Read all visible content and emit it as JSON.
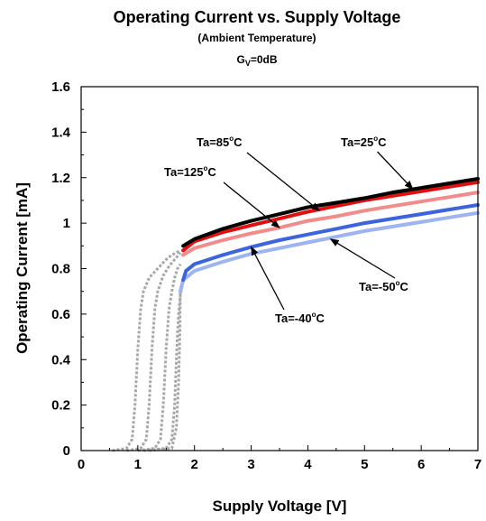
{
  "chart_data": {
    "type": "line",
    "title": "Operating Current vs. Supply Voltage",
    "subtitle": "(Ambient Temperature)",
    "condition": {
      "prefix": "G",
      "sub": "V",
      "suffix": "=0dB"
    },
    "xlabel": "Supply Voltage [V]",
    "ylabel": "Operating Current [mA]",
    "xlim": [
      0,
      7
    ],
    "ylim": [
      0,
      1.6
    ],
    "x_ticks": [
      "0",
      "1",
      "2",
      "3",
      "4",
      "5",
      "6",
      "7"
    ],
    "y_ticks": [
      "0",
      "0.2",
      "0.4",
      "0.6",
      "0.8",
      "1",
      "1.2",
      "1.4",
      "1.6"
    ],
    "grid": false,
    "legend": "none",
    "colors": {
      "25C": "#000000",
      "85C": "#e01010",
      "125C": "#f08c8c",
      "-40C": "#3c64dc",
      "-50C": "#9db4f0",
      "transition": "#a8a8a8"
    },
    "series": [
      {
        "key": "25C",
        "x": [
          1.8,
          2.0,
          2.5,
          3.0,
          3.5,
          4.0,
          4.5,
          5.0,
          5.5,
          6.0,
          6.5,
          7.0
        ],
        "y": [
          0.9,
          0.93,
          0.975,
          1.01,
          1.04,
          1.07,
          1.09,
          1.11,
          1.135,
          1.155,
          1.175,
          1.195
        ]
      },
      {
        "key": "85C",
        "x": [
          1.8,
          2.0,
          2.5,
          3.0,
          3.5,
          4.0,
          4.5,
          5.0,
          5.5,
          6.0,
          6.5,
          7.0
        ],
        "y": [
          0.88,
          0.92,
          0.96,
          0.99,
          1.02,
          1.05,
          1.075,
          1.1,
          1.12,
          1.14,
          1.16,
          1.18
        ]
      },
      {
        "key": "125C",
        "x": [
          1.8,
          2.0,
          2.5,
          3.0,
          3.5,
          4.0,
          4.5,
          5.0,
          5.5,
          6.0,
          6.5,
          7.0
        ],
        "y": [
          0.86,
          0.89,
          0.925,
          0.955,
          0.98,
          1.01,
          1.03,
          1.055,
          1.075,
          1.095,
          1.115,
          1.135
        ]
      },
      {
        "key": "-40C",
        "x": [
          1.8,
          1.85,
          2.0,
          2.5,
          3.0,
          3.5,
          4.0,
          4.5,
          5.0,
          5.5,
          6.0,
          6.5,
          7.0
        ],
        "y": [
          0.75,
          0.79,
          0.82,
          0.86,
          0.895,
          0.925,
          0.95,
          0.975,
          1.0,
          1.02,
          1.04,
          1.06,
          1.08
        ]
      },
      {
        "key": "-50C",
        "x": [
          1.75,
          1.8,
          2.0,
          2.5,
          3.0,
          3.5,
          4.0,
          4.5,
          5.0,
          5.5,
          6.0,
          6.5,
          7.0
        ],
        "y": [
          0.7,
          0.75,
          0.79,
          0.83,
          0.865,
          0.89,
          0.915,
          0.94,
          0.965,
          0.985,
          1.005,
          1.025,
          1.045
        ]
      }
    ],
    "transition_curves": [
      {
        "x": [
          0.55,
          0.8,
          0.9,
          0.95,
          1.0,
          1.05,
          1.1,
          1.2,
          1.35,
          1.5,
          1.6,
          1.75
        ],
        "y": [
          0.0,
          0.01,
          0.05,
          0.2,
          0.45,
          0.62,
          0.7,
          0.76,
          0.8,
          0.84,
          0.86,
          0.88
        ]
      },
      {
        "x": [
          0.8,
          1.05,
          1.15,
          1.2,
          1.25,
          1.3,
          1.35,
          1.45,
          1.55,
          1.65,
          1.75
        ],
        "y": [
          0.0,
          0.01,
          0.05,
          0.2,
          0.45,
          0.62,
          0.7,
          0.77,
          0.81,
          0.84,
          0.87
        ]
      },
      {
        "x": [
          1.0,
          1.3,
          1.4,
          1.45,
          1.5,
          1.55,
          1.6,
          1.65,
          1.7,
          1.75
        ],
        "y": [
          0.0,
          0.01,
          0.05,
          0.2,
          0.45,
          0.62,
          0.7,
          0.76,
          0.8,
          0.82
        ]
      },
      {
        "x": [
          1.1,
          1.5,
          1.6,
          1.65,
          1.68,
          1.7,
          1.72,
          1.75,
          1.78,
          1.8
        ],
        "y": [
          0.0,
          0.01,
          0.05,
          0.2,
          0.4,
          0.52,
          0.6,
          0.68,
          0.72,
          0.75
        ]
      },
      {
        "x": [
          1.2,
          1.6,
          1.68,
          1.72,
          1.74,
          1.75
        ],
        "y": [
          0.0,
          0.01,
          0.1,
          0.3,
          0.5,
          0.7
        ]
      }
    ],
    "annotations": [
      {
        "key": "25C",
        "label": "Ta=25",
        "unit": "C",
        "point": [
          5.85,
          1.15
        ]
      },
      {
        "key": "85C",
        "label": "Ta=85",
        "unit": "C",
        "point": [
          4.2,
          1.055
        ]
      },
      {
        "key": "125C",
        "label": "Ta=125",
        "unit": "C",
        "point": [
          3.5,
          0.98
        ]
      },
      {
        "key": "-50C",
        "label": "Ta=-50",
        "unit": "C",
        "point": [
          4.4,
          0.93
        ]
      },
      {
        "key": "-40C",
        "label": "Ta=-40",
        "unit": "C",
        "point": [
          3.0,
          0.895
        ]
      }
    ]
  }
}
